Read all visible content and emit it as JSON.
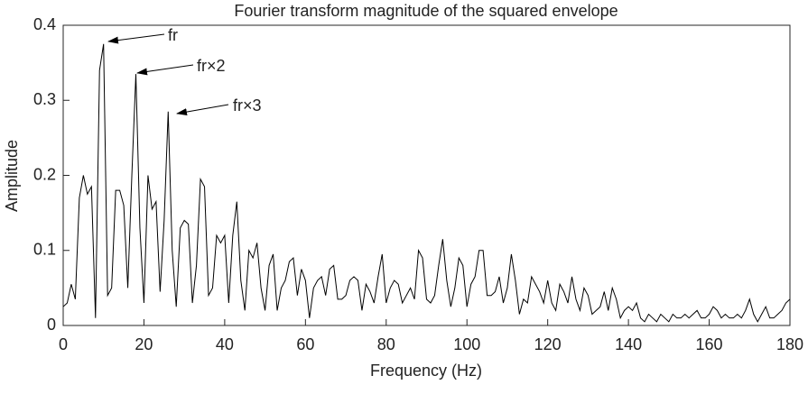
{
  "chart_data": {
    "type": "line",
    "title": "Fourier transform magnitude of the squared envelope",
    "xlabel": "Frequency (Hz)",
    "ylabel": "Amplitude",
    "x": [
      0,
      1,
      2,
      3,
      4,
      5,
      6,
      7,
      8,
      9,
      10,
      11,
      12,
      13,
      14,
      15,
      16,
      17,
      18,
      19,
      20,
      21,
      22,
      23,
      24,
      25,
      26,
      27,
      28,
      29,
      30,
      31,
      32,
      33,
      34,
      35,
      36,
      37,
      38,
      39,
      40,
      41,
      42,
      43,
      44,
      45,
      46,
      47,
      48,
      49,
      50,
      51,
      52,
      53,
      54,
      55,
      56,
      57,
      58,
      59,
      60,
      61,
      62,
      63,
      64,
      65,
      66,
      67,
      68,
      69,
      70,
      71,
      72,
      73,
      74,
      75,
      76,
      77,
      78,
      79,
      80,
      81,
      82,
      83,
      84,
      85,
      86,
      87,
      88,
      89,
      90,
      91,
      92,
      93,
      94,
      95,
      96,
      97,
      98,
      99,
      100,
      101,
      102,
      103,
      104,
      105,
      106,
      107,
      108,
      109,
      110,
      111,
      112,
      113,
      114,
      115,
      116,
      117,
      118,
      119,
      120,
      121,
      122,
      123,
      124,
      125,
      126,
      127,
      128,
      129,
      130,
      131,
      132,
      133,
      134,
      135,
      136,
      137,
      138,
      139,
      140,
      141,
      142,
      143,
      144,
      145,
      146,
      147,
      148,
      149,
      150,
      151,
      152,
      153,
      154,
      155,
      156,
      157,
      158,
      159,
      160,
      161,
      162,
      163,
      164,
      165,
      166,
      167,
      168,
      169,
      170,
      171,
      172,
      173,
      174,
      175,
      176,
      177,
      178,
      179,
      180
    ],
    "values": [
      0.025,
      0.03,
      0.055,
      0.035,
      0.17,
      0.2,
      0.175,
      0.185,
      0.01,
      0.34,
      0.375,
      0.04,
      0.05,
      0.18,
      0.18,
      0.16,
      0.05,
      0.2,
      0.335,
      0.13,
      0.03,
      0.2,
      0.155,
      0.165,
      0.045,
      0.14,
      0.285,
      0.1,
      0.025,
      0.13,
      0.14,
      0.135,
      0.03,
      0.08,
      0.195,
      0.185,
      0.04,
      0.05,
      0.12,
      0.11,
      0.12,
      0.03,
      0.12,
      0.165,
      0.06,
      0.02,
      0.1,
      0.09,
      0.11,
      0.05,
      0.02,
      0.08,
      0.095,
      0.02,
      0.05,
      0.06,
      0.085,
      0.09,
      0.04,
      0.075,
      0.06,
      0.01,
      0.05,
      0.06,
      0.065,
      0.04,
      0.075,
      0.08,
      0.035,
      0.035,
      0.04,
      0.06,
      0.065,
      0.06,
      0.02,
      0.055,
      0.045,
      0.03,
      0.065,
      0.095,
      0.03,
      0.05,
      0.06,
      0.055,
      0.03,
      0.04,
      0.05,
      0.035,
      0.1,
      0.09,
      0.035,
      0.03,
      0.04,
      0.08,
      0.115,
      0.06,
      0.025,
      0.05,
      0.09,
      0.08,
      0.025,
      0.055,
      0.065,
      0.1,
      0.1,
      0.04,
      0.04,
      0.045,
      0.065,
      0.03,
      0.05,
      0.095,
      0.06,
      0.015,
      0.035,
      0.03,
      0.065,
      0.055,
      0.045,
      0.03,
      0.06,
      0.03,
      0.02,
      0.055,
      0.045,
      0.03,
      0.065,
      0.035,
      0.02,
      0.05,
      0.04,
      0.015,
      0.02,
      0.025,
      0.045,
      0.02,
      0.05,
      0.035,
      0.01,
      0.02,
      0.025,
      0.02,
      0.03,
      0.01,
      0.005,
      0.015,
      0.01,
      0.005,
      0.015,
      0.01,
      0.005,
      0.015,
      0.01,
      0.01,
      0.015,
      0.01,
      0.015,
      0.02,
      0.01,
      0.01,
      0.015,
      0.025,
      0.02,
      0.01,
      0.015,
      0.01,
      0.01,
      0.015,
      0.01,
      0.02,
      0.035,
      0.015,
      0.005,
      0.015,
      0.025,
      0.01,
      0.01,
      0.015,
      0.02,
      0.03,
      0.035
    ],
    "color": "#000000",
    "xlim": [
      0,
      180
    ],
    "xticks": [
      0,
      20,
      40,
      60,
      80,
      100,
      120,
      140,
      160,
      180
    ],
    "ylim": [
      0,
      0.4
    ],
    "yticks": [
      0,
      0.1,
      0.2,
      0.3,
      0.4
    ],
    "grid": false,
    "annotations": [
      "fr",
      "fr×2",
      "fr×3"
    ]
  }
}
